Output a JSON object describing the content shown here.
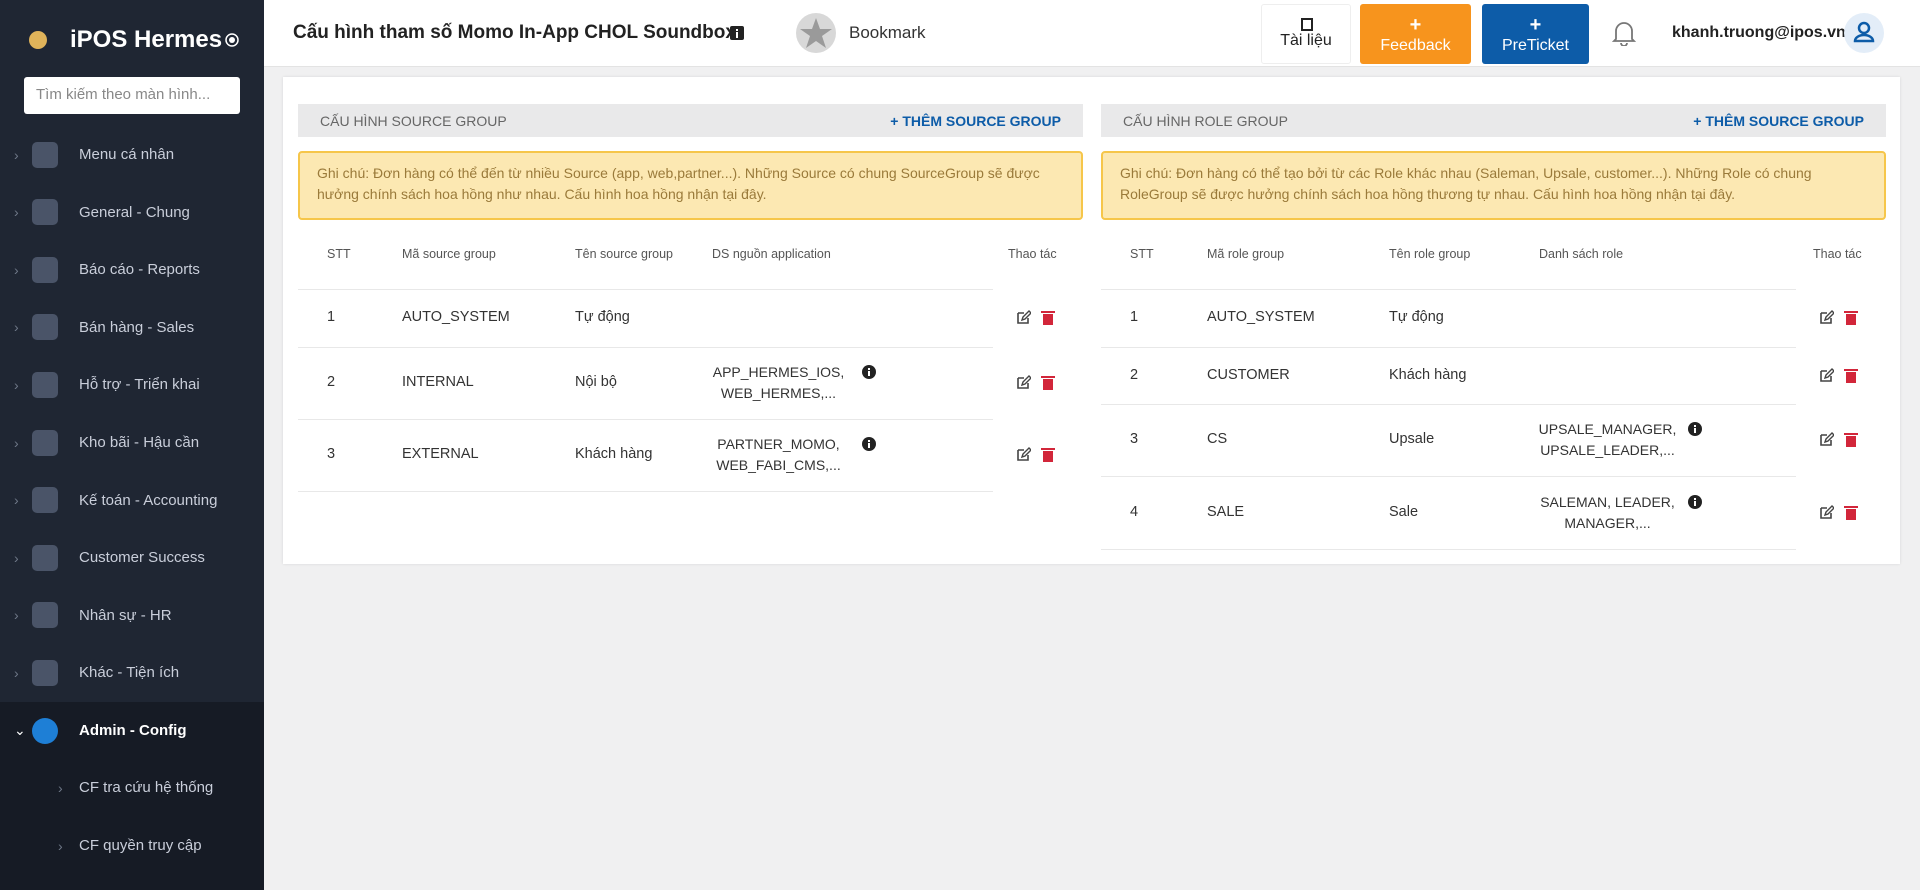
{
  "sidebar": {
    "brand": "iPOS Hermes",
    "search_placeholder": "Tìm kiếm theo màn hình...",
    "menu": [
      "Menu cá nhân",
      "General - Chung",
      "Báo cáo - Reports",
      "Bán hàng - Sales",
      "Hỗ trợ - Triển khai",
      "Kho bãi - Hậu cần",
      "Kế toán - Accounting",
      "Customer Success",
      "Nhân sự - HR",
      "Khác - Tiện ích",
      "Admin - Config"
    ],
    "submenu": [
      "CF tra cứu hệ thống",
      "CF quyền truy cập"
    ]
  },
  "header": {
    "title": "Cấu hình tham số Momo In-App CHOL Soundbox",
    "bookmark": "Bookmark",
    "docs": "Tài liệu",
    "feedback": "Feedback",
    "preticket": "PreTicket",
    "user": "khanh.truong@ipos.vn"
  },
  "panels": [
    {
      "title": "CẤU HÌNH SOURCE GROUP",
      "add": "+ THÊM SOURCE GROUP",
      "note": "Ghi chú: Đơn hàng có thể đến từ nhiều Source (app, web,partner...). Những Source có chung SourceGroup sẽ được hưởng chính sách hoa hồng như nhau. Cấu hình hoa hồng nhận tại đây.",
      "columns": [
        "STT",
        "Mã source group",
        "Tên source group",
        "DS nguồn application",
        "Thao tác"
      ],
      "rows": [
        {
          "stt": 1,
          "code": "AUTO_SYSTEM",
          "name": "Tự động"
        },
        {
          "stt": 2,
          "code": "INTERNAL",
          "name": "Nội bộ",
          "list": "APP_HERMES_IOS, WEB_HERMES,..."
        },
        {
          "stt": 3,
          "code": "EXTERNAL",
          "name": "Khách hàng",
          "list": "PARTNER_MOMO, WEB_FABI_CMS,..."
        }
      ]
    },
    {
      "title": "CẤU HÌNH ROLE GROUP",
      "add": "+ THÊM SOURCE GROUP",
      "note": "Ghi chú: Đơn hàng có thể tạo bởi từ các Role khác nhau (Saleman, Upsale, customer...). Những Role có chung RoleGroup sẽ được hưởng chính sách hoa hồng thương tự nhau. Cấu hình hoa hồng nhận tại đây.",
      "columns": [
        "STT",
        "Mã role group",
        "Tên role group",
        "Danh sách role",
        "Thao tác"
      ],
      "rows": [
        {
          "stt": 1,
          "code": "AUTO_SYSTEM",
          "name": "Tự động"
        },
        {
          "stt": 2,
          "code": "CUSTOMER",
          "name": "Khách hàng"
        },
        {
          "stt": 3,
          "code": "CS",
          "name": "Upsale",
          "list": "UPSALE_MANAGER, UPSALE_LEADER,..."
        },
        {
          "stt": 4,
          "code": "SALE",
          "name": "Sale",
          "list": "SALEMAN, LEADER, MANAGER,..."
        }
      ]
    }
  ]
}
